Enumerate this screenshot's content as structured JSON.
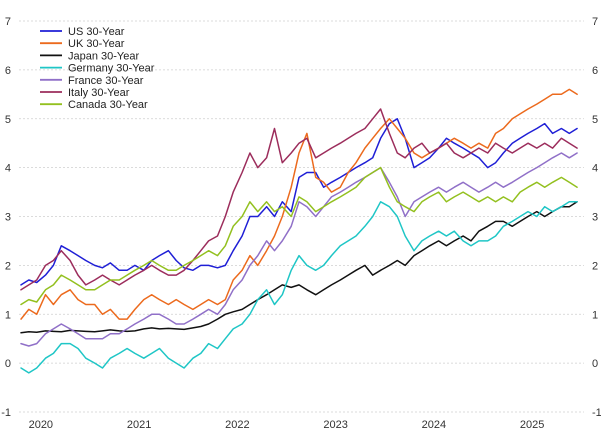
{
  "chart_data": {
    "type": "line",
    "title": "",
    "xlabel": "",
    "ylabel": "",
    "xlim": [
      2019.9,
      2025.65
    ],
    "ylim": [
      -1,
      7
    ],
    "y_ticks_left": [
      -1,
      0,
      1,
      2,
      3,
      4,
      5,
      6,
      7
    ],
    "y_ticks_right": [
      -1,
      0,
      1,
      2,
      3,
      4,
      5,
      6,
      7
    ],
    "x_ticks": [
      "2020",
      "2021",
      "2022",
      "2023",
      "2024",
      "2025"
    ],
    "x_tick_values": [
      2020,
      2021,
      2022,
      2023,
      2024,
      2025
    ],
    "grid": "horizontal dashed",
    "legend_position": "top-left",
    "series": [
      {
        "name": "US 30-Year",
        "color": "#1f1fd6",
        "x": [
          2019.92,
          2020.0,
          2020.08,
          2020.17,
          2020.25,
          2020.33,
          2020.42,
          2020.5,
          2020.58,
          2020.67,
          2020.75,
          2020.83,
          2020.92,
          2021.0,
          2021.08,
          2021.17,
          2021.25,
          2021.33,
          2021.42,
          2021.5,
          2021.58,
          2021.67,
          2021.75,
          2021.83,
          2021.92,
          2022.0,
          2022.08,
          2022.17,
          2022.25,
          2022.33,
          2022.42,
          2022.5,
          2022.58,
          2022.67,
          2022.75,
          2022.83,
          2022.92,
          2023.0,
          2023.08,
          2023.17,
          2023.25,
          2023.33,
          2023.42,
          2023.5,
          2023.58,
          2023.67,
          2023.75,
          2023.83,
          2023.92,
          2024.0,
          2024.08,
          2024.17,
          2024.25,
          2024.33,
          2024.42,
          2024.5,
          2024.58,
          2024.67,
          2024.75,
          2024.83,
          2024.92,
          2025.0,
          2025.08,
          2025.17,
          2025.25,
          2025.33,
          2025.42,
          2025.5,
          2025.58
        ],
        "y": [
          1.6,
          1.7,
          1.65,
          1.8,
          2.0,
          2.4,
          2.3,
          2.2,
          2.1,
          2.0,
          1.95,
          2.05,
          1.9,
          1.9,
          2.0,
          1.9,
          2.1,
          2.2,
          2.3,
          2.1,
          1.95,
          1.9,
          2.0,
          2.0,
          1.95,
          2.0,
          2.3,
          2.6,
          3.0,
          3.0,
          3.2,
          3.0,
          3.3,
          3.1,
          3.8,
          3.9,
          3.9,
          3.6,
          3.7,
          3.8,
          3.9,
          4.0,
          4.1,
          4.2,
          4.6,
          4.9,
          5.0,
          4.6,
          4.0,
          4.1,
          4.2,
          4.4,
          4.6,
          4.5,
          4.4,
          4.3,
          4.2,
          4.0,
          4.1,
          4.3,
          4.5,
          4.6,
          4.7,
          4.8,
          4.9,
          4.7,
          4.8,
          4.7,
          4.8
        ]
      },
      {
        "name": "UK 30-Year",
        "color": "#ec6a1d",
        "x": [
          2019.92,
          2020.0,
          2020.08,
          2020.17,
          2020.25,
          2020.33,
          2020.42,
          2020.5,
          2020.58,
          2020.67,
          2020.75,
          2020.83,
          2020.92,
          2021.0,
          2021.08,
          2021.17,
          2021.25,
          2021.33,
          2021.42,
          2021.5,
          2021.58,
          2021.67,
          2021.75,
          2021.83,
          2021.92,
          2022.0,
          2022.08,
          2022.17,
          2022.25,
          2022.33,
          2022.42,
          2022.5,
          2022.58,
          2022.67,
          2022.75,
          2022.83,
          2022.92,
          2023.0,
          2023.08,
          2023.17,
          2023.25,
          2023.33,
          2023.42,
          2023.5,
          2023.58,
          2023.67,
          2023.75,
          2023.83,
          2023.92,
          2024.0,
          2024.08,
          2024.17,
          2024.25,
          2024.33,
          2024.42,
          2024.5,
          2024.58,
          2024.67,
          2024.75,
          2024.83,
          2024.92,
          2025.0,
          2025.08,
          2025.17,
          2025.25,
          2025.33,
          2025.42,
          2025.5,
          2025.58
        ],
        "y": [
          0.9,
          1.1,
          1.0,
          1.4,
          1.2,
          1.4,
          1.5,
          1.3,
          1.2,
          1.2,
          1.0,
          1.1,
          0.9,
          0.9,
          1.1,
          1.3,
          1.4,
          1.3,
          1.2,
          1.3,
          1.2,
          1.1,
          1.2,
          1.3,
          1.2,
          1.3,
          1.7,
          1.9,
          2.2,
          2.0,
          2.3,
          2.6,
          3.0,
          3.6,
          4.3,
          4.7,
          3.8,
          3.7,
          3.5,
          3.6,
          3.9,
          4.1,
          4.4,
          4.6,
          4.8,
          5.0,
          4.8,
          4.6,
          4.3,
          4.2,
          4.3,
          4.4,
          4.5,
          4.6,
          4.5,
          4.4,
          4.5,
          4.4,
          4.7,
          4.8,
          5.0,
          5.1,
          5.2,
          5.3,
          5.4,
          5.5,
          5.5,
          5.6,
          5.5
        ]
      },
      {
        "name": "Japan 30-Year",
        "color": "#111111",
        "x": [
          2019.92,
          2020.0,
          2020.08,
          2020.17,
          2020.25,
          2020.33,
          2020.42,
          2020.5,
          2020.58,
          2020.67,
          2020.75,
          2020.83,
          2020.92,
          2021.0,
          2021.08,
          2021.17,
          2021.25,
          2021.33,
          2021.42,
          2021.5,
          2021.58,
          2021.67,
          2021.75,
          2021.83,
          2021.92,
          2022.0,
          2022.08,
          2022.17,
          2022.25,
          2022.33,
          2022.42,
          2022.5,
          2022.58,
          2022.67,
          2022.75,
          2022.83,
          2022.92,
          2023.0,
          2023.08,
          2023.17,
          2023.25,
          2023.33,
          2023.42,
          2023.5,
          2023.58,
          2023.67,
          2023.75,
          2023.83,
          2023.92,
          2024.0,
          2024.08,
          2024.17,
          2024.25,
          2024.33,
          2024.42,
          2024.5,
          2024.58,
          2024.67,
          2024.75,
          2024.83,
          2024.92,
          2025.0,
          2025.08,
          2025.17,
          2025.25,
          2025.33,
          2025.42,
          2025.5,
          2025.58
        ],
        "y": [
          0.62,
          0.64,
          0.63,
          0.66,
          0.65,
          0.64,
          0.67,
          0.66,
          0.65,
          0.64,
          0.66,
          0.68,
          0.66,
          0.65,
          0.66,
          0.7,
          0.72,
          0.7,
          0.71,
          0.7,
          0.69,
          0.72,
          0.75,
          0.8,
          0.9,
          1.0,
          1.05,
          1.1,
          1.2,
          1.3,
          1.4,
          1.5,
          1.6,
          1.55,
          1.6,
          1.5,
          1.4,
          1.5,
          1.6,
          1.7,
          1.8,
          1.9,
          2.0,
          1.8,
          1.9,
          2.0,
          2.1,
          2.0,
          2.2,
          2.3,
          2.4,
          2.5,
          2.4,
          2.5,
          2.6,
          2.5,
          2.7,
          2.8,
          2.9,
          2.9,
          2.8,
          2.9,
          3.0,
          3.1,
          3.0,
          3.1,
          3.2,
          3.2,
          3.3
        ]
      },
      {
        "name": "Germany 30-Year",
        "color": "#1fc6c6",
        "x": [
          2019.92,
          2020.0,
          2020.08,
          2020.17,
          2020.25,
          2020.33,
          2020.42,
          2020.5,
          2020.58,
          2020.67,
          2020.75,
          2020.83,
          2020.92,
          2021.0,
          2021.08,
          2021.17,
          2021.25,
          2021.33,
          2021.42,
          2021.5,
          2021.58,
          2021.67,
          2021.75,
          2021.83,
          2021.92,
          2022.0,
          2022.08,
          2022.17,
          2022.25,
          2022.33,
          2022.42,
          2022.5,
          2022.58,
          2022.67,
          2022.75,
          2022.83,
          2022.92,
          2023.0,
          2023.08,
          2023.17,
          2023.25,
          2023.33,
          2023.42,
          2023.5,
          2023.58,
          2023.67,
          2023.75,
          2023.83,
          2023.92,
          2024.0,
          2024.08,
          2024.17,
          2024.25,
          2024.33,
          2024.42,
          2024.5,
          2024.58,
          2024.67,
          2024.75,
          2024.83,
          2024.92,
          2025.0,
          2025.08,
          2025.17,
          2025.25,
          2025.33,
          2025.42,
          2025.5,
          2025.58
        ],
        "y": [
          -0.1,
          -0.2,
          -0.1,
          0.1,
          0.2,
          0.4,
          0.4,
          0.3,
          0.1,
          0.0,
          -0.1,
          0.1,
          0.2,
          0.3,
          0.2,
          0.1,
          0.2,
          0.3,
          0.1,
          0.0,
          -0.1,
          0.1,
          0.2,
          0.4,
          0.3,
          0.5,
          0.7,
          0.8,
          1.0,
          1.3,
          1.5,
          1.2,
          1.4,
          1.9,
          2.2,
          2.0,
          1.9,
          2.0,
          2.2,
          2.4,
          2.5,
          2.6,
          2.8,
          3.0,
          3.3,
          3.2,
          3.0,
          2.6,
          2.3,
          2.5,
          2.6,
          2.7,
          2.6,
          2.7,
          2.5,
          2.4,
          2.5,
          2.5,
          2.6,
          2.8,
          2.9,
          3.0,
          3.1,
          3.0,
          3.2,
          3.1,
          3.2,
          3.3,
          3.3
        ]
      },
      {
        "name": "France 30-Year",
        "color": "#9070c8",
        "x": [
          2019.92,
          2020.0,
          2020.08,
          2020.17,
          2020.25,
          2020.33,
          2020.42,
          2020.5,
          2020.58,
          2020.67,
          2020.75,
          2020.83,
          2020.92,
          2021.0,
          2021.08,
          2021.17,
          2021.25,
          2021.33,
          2021.42,
          2021.5,
          2021.58,
          2021.67,
          2021.75,
          2021.83,
          2021.92,
          2022.0,
          2022.08,
          2022.17,
          2022.25,
          2022.33,
          2022.42,
          2022.5,
          2022.58,
          2022.67,
          2022.75,
          2022.83,
          2022.92,
          2023.0,
          2023.08,
          2023.17,
          2023.25,
          2023.33,
          2023.42,
          2023.5,
          2023.58,
          2023.67,
          2023.75,
          2023.83,
          2023.92,
          2024.0,
          2024.08,
          2024.17,
          2024.25,
          2024.33,
          2024.42,
          2024.5,
          2024.58,
          2024.67,
          2024.75,
          2024.83,
          2024.92,
          2025.0,
          2025.08,
          2025.17,
          2025.25,
          2025.33,
          2025.42,
          2025.5,
          2025.58
        ],
        "y": [
          0.4,
          0.35,
          0.4,
          0.6,
          0.7,
          0.8,
          0.7,
          0.6,
          0.5,
          0.5,
          0.5,
          0.6,
          0.6,
          0.7,
          0.8,
          0.9,
          1.0,
          1.0,
          0.9,
          0.8,
          0.8,
          0.9,
          1.0,
          1.1,
          1.0,
          1.2,
          1.5,
          1.7,
          2.0,
          2.2,
          2.5,
          2.3,
          2.5,
          2.8,
          3.3,
          3.2,
          3.0,
          3.2,
          3.4,
          3.5,
          3.6,
          3.7,
          3.8,
          3.9,
          4.0,
          3.7,
          3.4,
          3.0,
          3.3,
          3.4,
          3.5,
          3.6,
          3.5,
          3.6,
          3.7,
          3.6,
          3.5,
          3.6,
          3.7,
          3.6,
          3.7,
          3.8,
          3.9,
          4.0,
          4.1,
          4.2,
          4.3,
          4.2,
          4.3
        ]
      },
      {
        "name": "Italy 30-Year",
        "color": "#9c2d5c",
        "x": [
          2019.92,
          2020.0,
          2020.08,
          2020.17,
          2020.25,
          2020.33,
          2020.42,
          2020.5,
          2020.58,
          2020.67,
          2020.75,
          2020.83,
          2020.92,
          2021.0,
          2021.08,
          2021.17,
          2021.25,
          2021.33,
          2021.42,
          2021.5,
          2021.58,
          2021.67,
          2021.75,
          2021.83,
          2021.92,
          2022.0,
          2022.08,
          2022.17,
          2022.25,
          2022.33,
          2022.42,
          2022.5,
          2022.58,
          2022.67,
          2022.75,
          2022.83,
          2022.92,
          2023.0,
          2023.08,
          2023.17,
          2023.25,
          2023.33,
          2023.42,
          2023.5,
          2023.58,
          2023.67,
          2023.75,
          2023.83,
          2023.92,
          2024.0,
          2024.08,
          2024.17,
          2024.25,
          2024.33,
          2024.42,
          2024.5,
          2024.58,
          2024.67,
          2024.75,
          2024.83,
          2024.92,
          2025.0,
          2025.08,
          2025.17,
          2025.25,
          2025.33,
          2025.42,
          2025.5,
          2025.58
        ],
        "y": [
          1.5,
          1.6,
          1.7,
          2.0,
          2.1,
          2.3,
          2.1,
          1.8,
          1.6,
          1.7,
          1.8,
          1.7,
          1.6,
          1.7,
          1.8,
          1.9,
          2.0,
          1.9,
          1.8,
          1.8,
          1.9,
          2.1,
          2.3,
          2.5,
          2.6,
          3.0,
          3.5,
          3.9,
          4.3,
          4.0,
          4.2,
          4.8,
          4.1,
          4.3,
          4.5,
          4.6,
          4.2,
          4.3,
          4.4,
          4.5,
          4.6,
          4.7,
          4.8,
          5.0,
          5.2,
          4.7,
          4.3,
          4.2,
          4.4,
          4.5,
          4.3,
          4.4,
          4.5,
          4.3,
          4.2,
          4.3,
          4.4,
          4.3,
          4.5,
          4.4,
          4.3,
          4.4,
          4.5,
          4.4,
          4.5,
          4.4,
          4.6,
          4.5,
          4.4
        ]
      },
      {
        "name": "Canada 30-Year",
        "color": "#93c01f",
        "x": [
          2019.92,
          2020.0,
          2020.08,
          2020.17,
          2020.25,
          2020.33,
          2020.42,
          2020.5,
          2020.58,
          2020.67,
          2020.75,
          2020.83,
          2020.92,
          2021.0,
          2021.08,
          2021.17,
          2021.25,
          2021.33,
          2021.42,
          2021.5,
          2021.58,
          2021.67,
          2021.75,
          2021.83,
          2021.92,
          2022.0,
          2022.08,
          2022.17,
          2022.25,
          2022.33,
          2022.42,
          2022.5,
          2022.58,
          2022.67,
          2022.75,
          2022.83,
          2022.92,
          2023.0,
          2023.08,
          2023.17,
          2023.25,
          2023.33,
          2023.42,
          2023.5,
          2023.58,
          2023.67,
          2023.75,
          2023.83,
          2023.92,
          2024.0,
          2024.08,
          2024.17,
          2024.25,
          2024.33,
          2024.42,
          2024.5,
          2024.58,
          2024.67,
          2024.75,
          2024.83,
          2024.92,
          2025.0,
          2025.08,
          2025.17,
          2025.25,
          2025.33,
          2025.42,
          2025.5,
          2025.58
        ],
        "y": [
          1.2,
          1.3,
          1.25,
          1.5,
          1.6,
          1.8,
          1.7,
          1.6,
          1.5,
          1.5,
          1.6,
          1.7,
          1.7,
          1.8,
          1.9,
          2.0,
          2.1,
          2.0,
          1.9,
          1.9,
          2.0,
          2.1,
          2.2,
          2.3,
          2.2,
          2.4,
          2.8,
          3.0,
          3.3,
          3.1,
          3.3,
          3.1,
          3.2,
          3.0,
          3.4,
          3.3,
          3.1,
          3.2,
          3.3,
          3.4,
          3.5,
          3.6,
          3.8,
          3.9,
          4.0,
          3.6,
          3.3,
          3.2,
          3.1,
          3.3,
          3.4,
          3.5,
          3.3,
          3.4,
          3.5,
          3.4,
          3.3,
          3.4,
          3.3,
          3.4,
          3.3,
          3.5,
          3.6,
          3.7,
          3.6,
          3.7,
          3.8,
          3.7,
          3.6
        ]
      }
    ]
  }
}
